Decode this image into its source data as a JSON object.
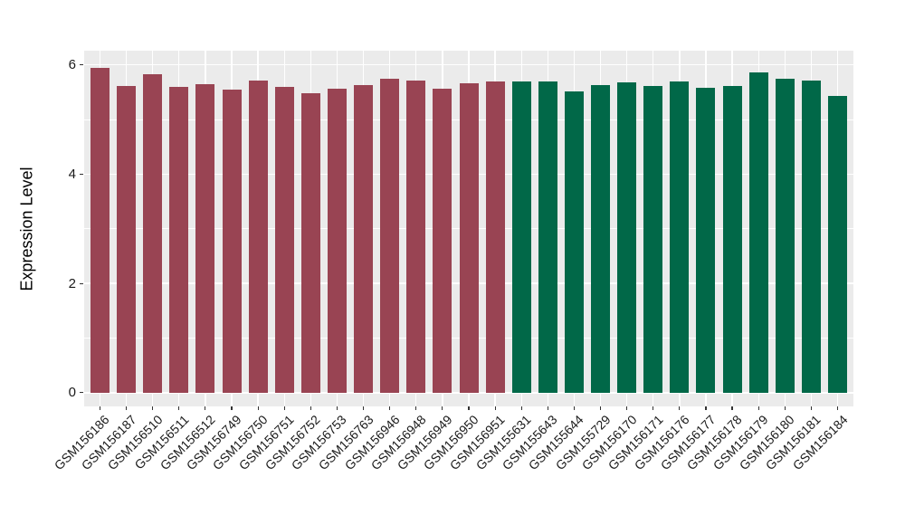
{
  "chart_data": {
    "type": "bar",
    "title": "",
    "xlabel": "",
    "ylabel": "Expression Level",
    "ylim": [
      -0.25,
      6.26
    ],
    "yticks": [
      0,
      2,
      4,
      6
    ],
    "minor_yticks": [
      1,
      3,
      5
    ],
    "grid": "on",
    "legend_position": "none",
    "panel_background": "#EBEBEB",
    "grid_color": "#FFFFFF",
    "axis_text_color": "#1a1a1a",
    "tick_color": "#333333",
    "group_colors": {
      "group1": "#994453",
      "group2": "#016848"
    },
    "categories": [
      "GSM156186",
      "GSM156187",
      "GSM156510",
      "GSM156511",
      "GSM156512",
      "GSM156749",
      "GSM156750",
      "GSM156751",
      "GSM156752",
      "GSM156753",
      "GSM156763",
      "GSM156946",
      "GSM156948",
      "GSM156949",
      "GSM156950",
      "GSM156951",
      "GSM155631",
      "GSM155643",
      "GSM155644",
      "GSM155729",
      "GSM156170",
      "GSM156171",
      "GSM156176",
      "GSM156177",
      "GSM156178",
      "GSM156179",
      "GSM156180",
      "GSM156181",
      "GSM156184"
    ],
    "values": [
      5.95,
      5.61,
      5.83,
      5.59,
      5.64,
      5.55,
      5.72,
      5.6,
      5.48,
      5.56,
      5.63,
      5.74,
      5.71,
      5.56,
      5.67,
      5.7,
      5.7,
      5.69,
      5.52,
      5.63,
      5.68,
      5.62,
      5.69,
      5.58,
      5.61,
      5.87,
      5.75,
      5.72,
      5.43
    ],
    "groups": [
      "group1",
      "group1",
      "group1",
      "group1",
      "group1",
      "group1",
      "group1",
      "group1",
      "group1",
      "group1",
      "group1",
      "group1",
      "group1",
      "group1",
      "group1",
      "group1",
      "group2",
      "group2",
      "group2",
      "group2",
      "group2",
      "group2",
      "group2",
      "group2",
      "group2",
      "group2",
      "group2",
      "group2",
      "group2"
    ]
  }
}
